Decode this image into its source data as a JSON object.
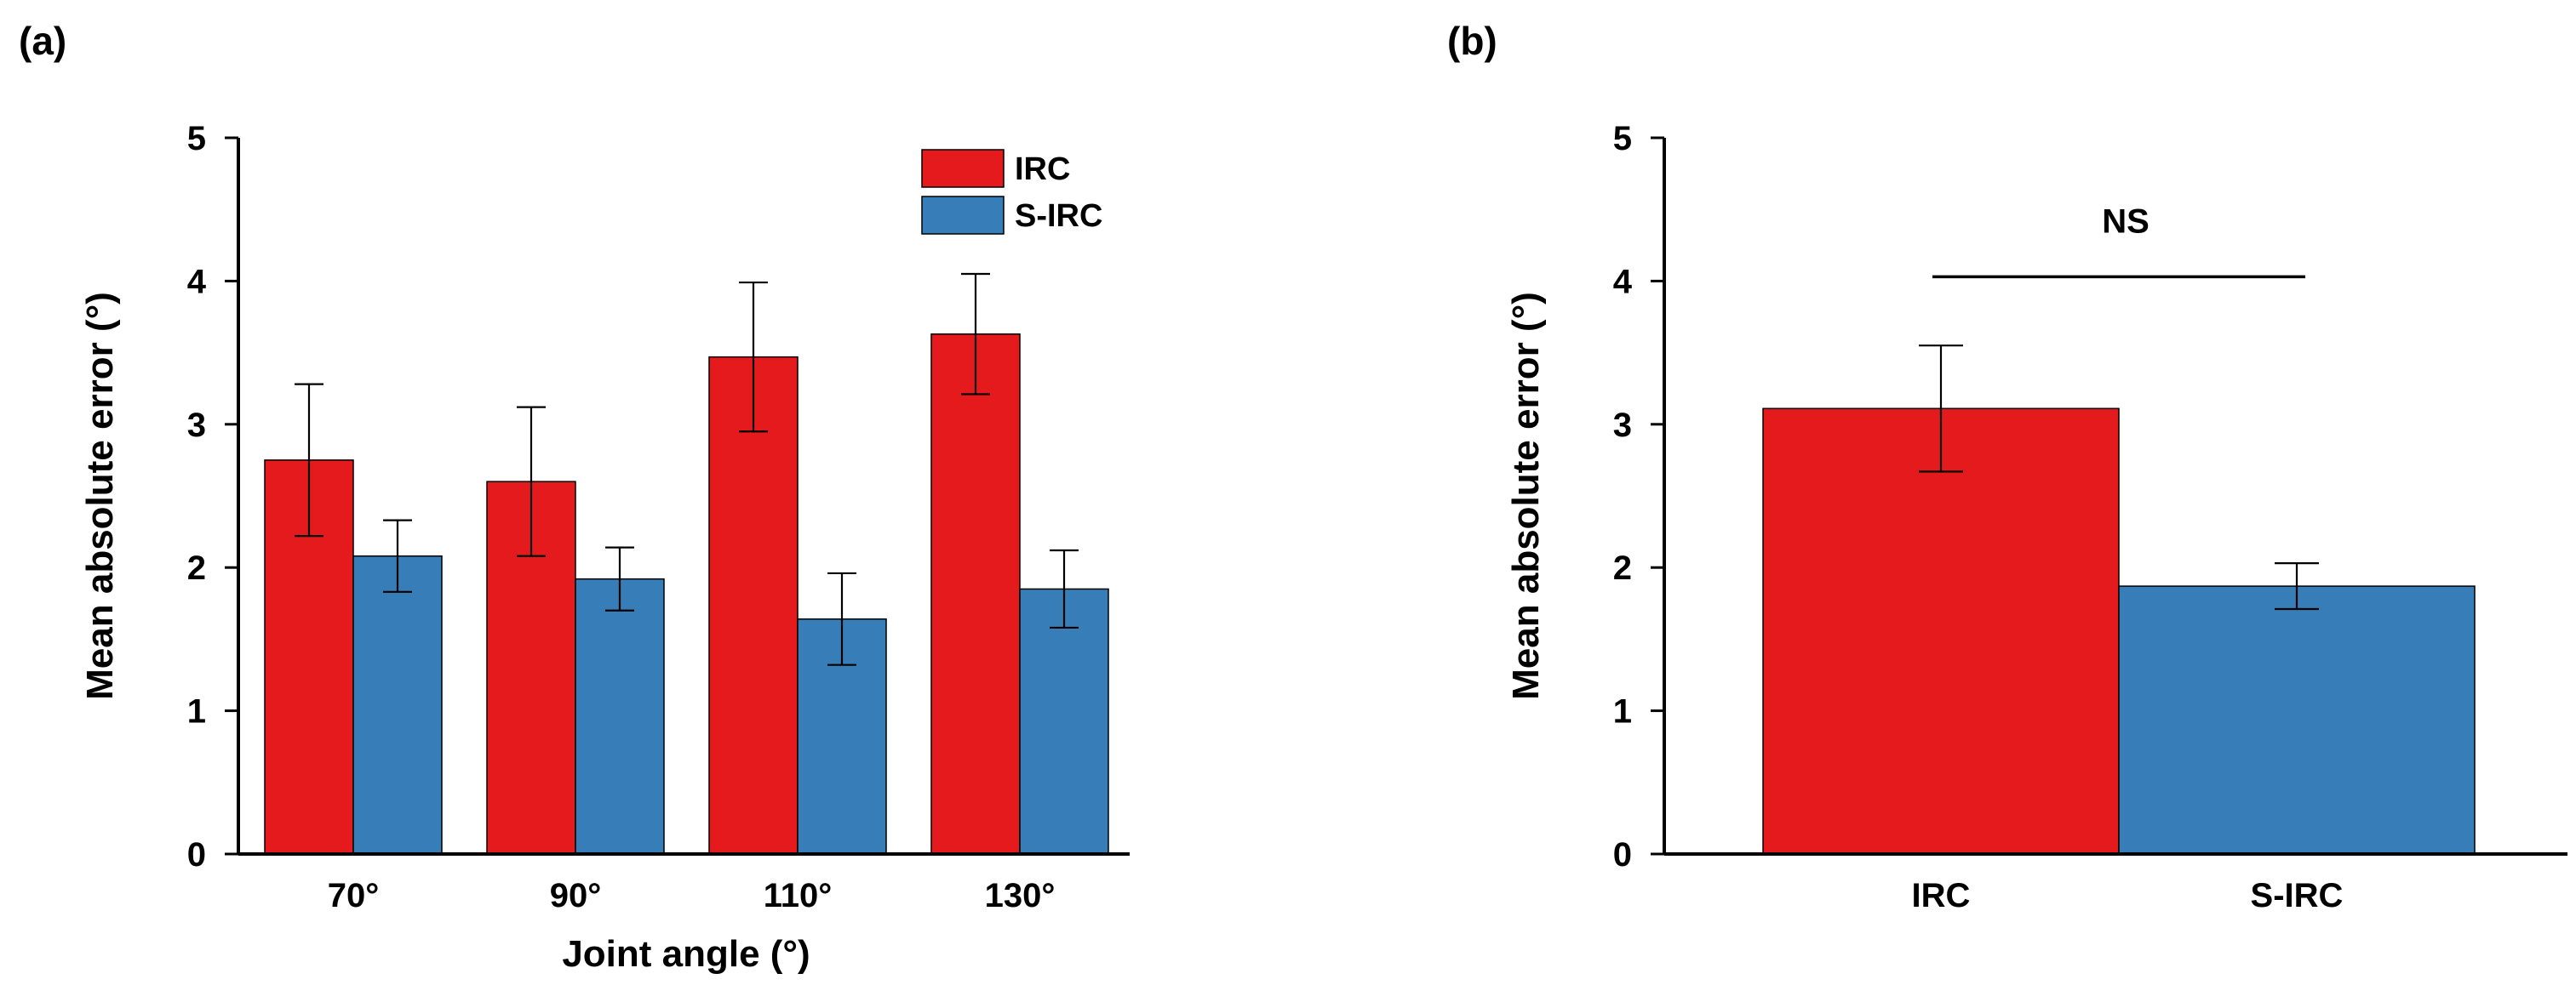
{
  "figure_labels": {
    "a": "(a)",
    "b": "(b)"
  },
  "colors": {
    "IRC": "#e41a1c",
    "S-IRC": "#377eb8",
    "axis": "#000000"
  },
  "chart_data": [
    {
      "panel": "a",
      "type": "bar",
      "title": "",
      "xlabel": "Joint angle (°)",
      "ylabel": "Mean absolute error (°)",
      "ylim": [
        0,
        5
      ],
      "yticks": [
        "0",
        "1",
        "2",
        "3",
        "4",
        "5"
      ],
      "categories": [
        "70°",
        "90°",
        "110°",
        "130°"
      ],
      "legend": {
        "position": "top-right",
        "entries": [
          "IRC",
          "S-IRC"
        ]
      },
      "series": [
        {
          "name": "IRC",
          "values": [
            2.75,
            2.6,
            3.47,
            3.63
          ],
          "errors": [
            0.53,
            0.52,
            0.52,
            0.42
          ]
        },
        {
          "name": "S-IRC",
          "values": [
            2.08,
            1.92,
            1.64,
            1.85
          ],
          "errors": [
            0.25,
            0.22,
            0.32,
            0.27
          ]
        }
      ]
    },
    {
      "panel": "b",
      "type": "bar",
      "title": "",
      "xlabel": "",
      "ylabel": "Mean absolute error (°)",
      "ylim": [
        0,
        5
      ],
      "yticks": [
        "0",
        "1",
        "2",
        "3",
        "4",
        "5"
      ],
      "categories": [
        "IRC",
        "S-IRC"
      ],
      "values": [
        3.11,
        1.87
      ],
      "errors": [
        0.44,
        0.16
      ],
      "annotation": {
        "text": "NS",
        "y": 4.03
      }
    }
  ]
}
